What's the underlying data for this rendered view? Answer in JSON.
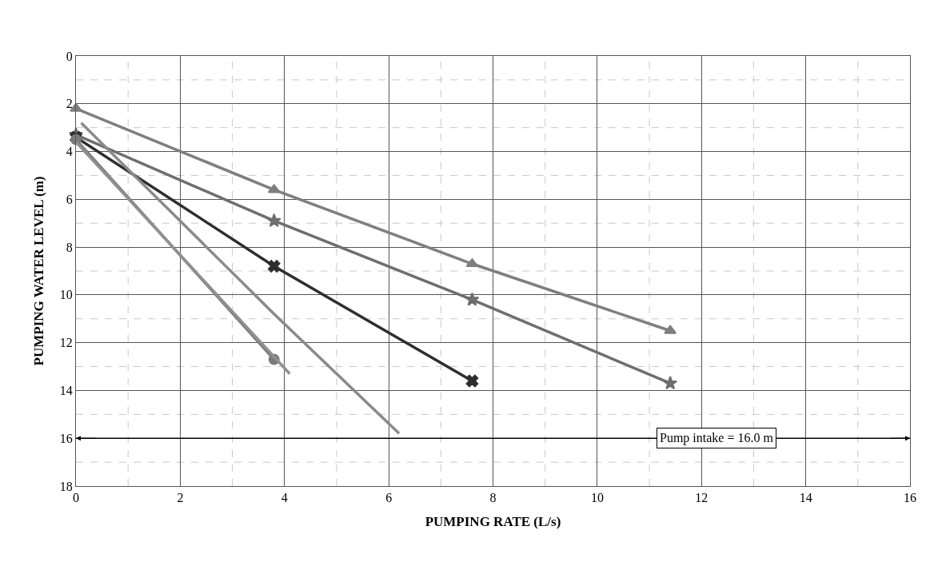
{
  "chart_data": {
    "type": "line",
    "xlabel": "PUMPING RATE (L/s)",
    "ylabel": "PUMPING WATER LEVEL (m)",
    "xlim": [
      0,
      16
    ],
    "xticks": [
      0,
      2,
      4,
      6,
      8,
      10,
      12,
      14,
      16
    ],
    "ylim": [
      18,
      0
    ],
    "yticks": [
      0,
      2,
      4,
      6,
      8,
      10,
      12,
      14,
      16,
      18
    ],
    "grid": true,
    "line_style": "solid",
    "series": [
      {
        "color": "#7f7f7f",
        "marker": "triangle",
        "x": [
          0,
          3.8,
          7.6,
          11.4
        ],
        "values": [
          2.2,
          5.6,
          8.7,
          11.5
        ]
      },
      {
        "color": "#6e6e6e",
        "marker": "star",
        "x": [
          0,
          3.8,
          7.6,
          11.4
        ],
        "values": [
          3.3,
          6.9,
          10.2,
          13.7
        ]
      },
      {
        "color": "#2e2e2e",
        "marker": "cross",
        "x": [
          0,
          3.8,
          7.6
        ],
        "values": [
          3.4,
          8.8,
          13.6
        ]
      },
      {
        "color": "#8a8a8a",
        "marker": "none",
        "x": [
          0.1,
          3.8,
          6.2
        ],
        "values": [
          2.8,
          10.8,
          15.8
        ]
      },
      {
        "color": "#7a7a7a",
        "marker": "circle",
        "x": [
          0,
          3.8
        ],
        "values": [
          3.5,
          12.7
        ]
      },
      {
        "color": "#909090",
        "marker": "none",
        "x": [
          0,
          4.1
        ],
        "values": [
          3.6,
          13.3
        ]
      }
    ],
    "ref_lines": [
      {
        "axis": "y",
        "value": 16,
        "label": "Pump intake = 16.0 m",
        "color": "#000000"
      }
    ]
  }
}
